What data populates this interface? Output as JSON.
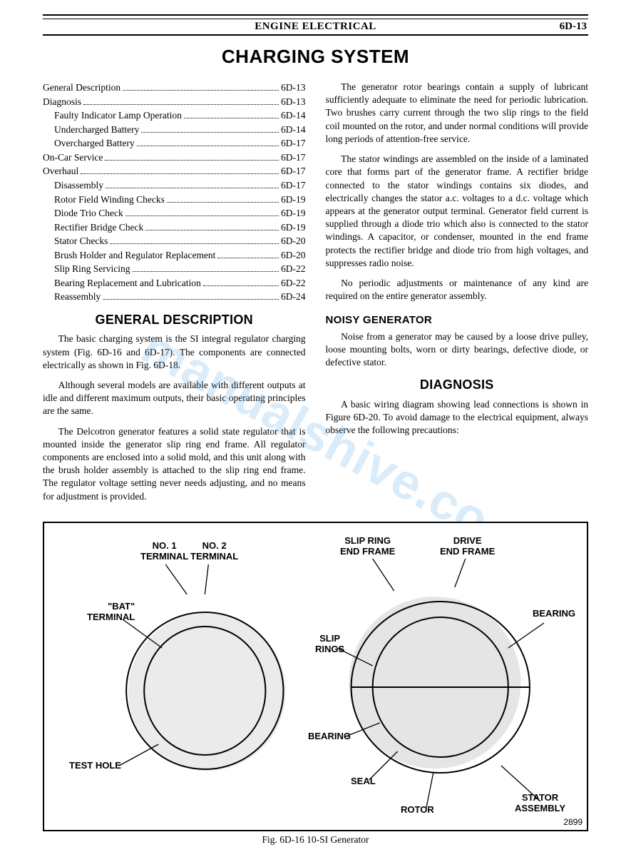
{
  "header": {
    "section_title": "ENGINE ELECTRICAL",
    "page_number": "6D-13"
  },
  "title": "CHARGING SYSTEM",
  "toc": [
    {
      "label": "General Description",
      "page": "6D-13",
      "indent": false
    },
    {
      "label": "Diagnosis",
      "page": "6D-13",
      "indent": false
    },
    {
      "label": "Faulty Indicator Lamp Operation",
      "page": "6D-14",
      "indent": true
    },
    {
      "label": "Undercharged Battery",
      "page": "6D-14",
      "indent": true
    },
    {
      "label": "Overcharged Battery",
      "page": "6D-17",
      "indent": true
    },
    {
      "label": "On-Car Service",
      "page": "6D-17",
      "indent": false
    },
    {
      "label": "Overhaul",
      "page": "6D-17",
      "indent": false
    },
    {
      "label": "Disassembly",
      "page": "6D-17",
      "indent": true
    },
    {
      "label": "Rotor Field Winding Checks",
      "page": "6D-19",
      "indent": true
    },
    {
      "label": "Diode Trio Check",
      "page": "6D-19",
      "indent": true
    },
    {
      "label": "Rectifier Bridge Check",
      "page": "6D-19",
      "indent": true
    },
    {
      "label": "Stator Checks",
      "page": "6D-20",
      "indent": true
    },
    {
      "label": "Brush Holder and Regulator Replacement",
      "page": "6D-20",
      "indent": true
    },
    {
      "label": "Slip Ring Servicing",
      "page": "6D-22",
      "indent": true
    },
    {
      "label": "Bearing Replacement and Lubrication",
      "page": "6D-22",
      "indent": true
    },
    {
      "label": "Reassembly",
      "page": "6D-24",
      "indent": true
    }
  ],
  "left_sections": {
    "general_description_heading": "GENERAL DESCRIPTION",
    "p1": "The basic charging system is the SI integral regulator charging system (Fig. 6D-16 and 6D-17). The components are connected electrically as shown in Fig. 6D-18.",
    "p2": "Although several models are available with different outputs at idle and different maximum outputs, their basic operating principles are the same.",
    "p3": "The Delcotron generator features a solid state regulator that is mounted inside the generator slip ring end frame. All regulator components are enclosed into a solid mold, and this unit along with the brush holder assembly is attached to the slip ring end frame. The regulator voltage setting never needs adjusting, and no means for adjustment is provided."
  },
  "right_sections": {
    "p1": "The generator rotor bearings contain a supply of lubricant sufficiently adequate to eliminate the need for periodic lubrication. Two brushes carry current through the two slip rings to the field coil mounted on the rotor, and under normal conditions will provide long periods of attention-free service.",
    "p2": "The stator windings are assembled on the inside of a laminated core that forms part of the generator frame. A rectifier bridge connected to the stator windings contains six diodes, and electrically changes the stator a.c. voltages to a d.c. voltage which appears at the generator output terminal. Generator field current is supplied through a diode trio which also is connected to the stator windings. A capacitor, or condenser, mounted in the end frame protects the rectifier bridge and diode trio from high voltages, and suppresses radio noise.",
    "p3": "No periodic adjustments or maintenance of any kind are required on the entire generator assembly.",
    "noisy_heading": "NOISY GENERATOR",
    "noisy_p": "Noise from a generator may be caused by a loose drive pulley, loose mounting bolts, worn or dirty bearings, defective diode, or defective stator.",
    "diagnosis_heading": "DIAGNOSIS",
    "diag_p": "A basic wiring diagram showing lead connections is shown in Figure 6D-20. To avoid damage to the electrical equipment, always observe the following precautions:"
  },
  "figure": {
    "labels": {
      "no1_terminal": "NO. 1\nTERMINAL",
      "no2_terminal": "NO. 2\nTERMINAL",
      "bat_terminal": "\"BAT\"\nTERMINAL",
      "test_hole": "TEST HOLE",
      "slip_ring_end_frame": "SLIP RING\nEND FRAME",
      "drive_end_frame": "DRIVE\nEND FRAME",
      "bearing_right": "BEARING",
      "slip_rings": "SLIP\nRINGS",
      "bearing_left": "BEARING",
      "seal": "SEAL",
      "rotor": "ROTOR",
      "stator_assembly": "STATOR\nASSEMBLY"
    },
    "number": "2899",
    "caption": "Fig. 6D-16 10-SI Generator"
  },
  "watermark": "manualshive.co"
}
